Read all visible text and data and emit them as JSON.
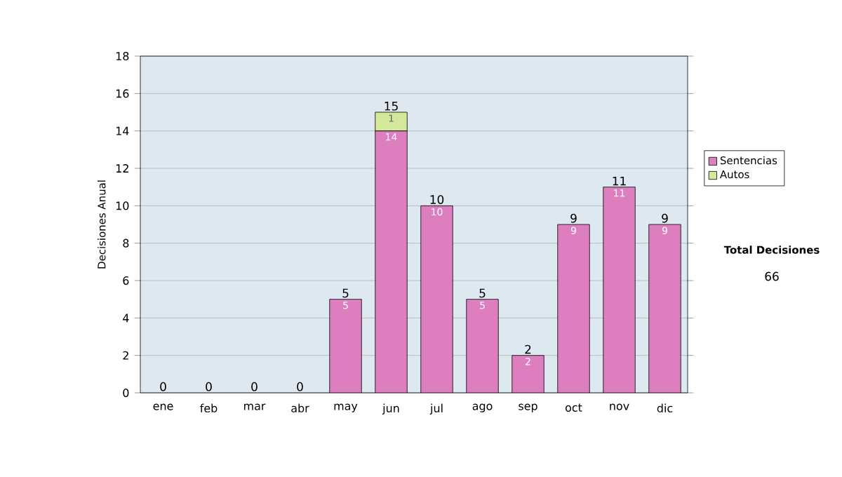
{
  "chart_data": {
    "type": "bar",
    "stacked": true,
    "ylabel": "Decisiones Anual",
    "categories": [
      "ene",
      "feb",
      "mar",
      "abr",
      "may",
      "jun",
      "jul",
      "ago",
      "sep",
      "oct",
      "nov",
      "dic"
    ],
    "series": [
      {
        "name": "Sentencias",
        "color": "#dd7fbf",
        "values": [
          0,
          0,
          0,
          0,
          5,
          14,
          10,
          5,
          2,
          9,
          11,
          9
        ],
        "value_labels": [
          null,
          null,
          null,
          null,
          "5",
          "14",
          "10",
          "5",
          "2",
          "9",
          "11",
          "9"
        ]
      },
      {
        "name": "Autos",
        "color": "#d4e89a",
        "values": [
          0,
          0,
          0,
          0,
          0,
          1,
          0,
          0,
          0,
          0,
          0,
          0
        ],
        "value_labels": [
          null,
          null,
          null,
          null,
          null,
          "1",
          null,
          null,
          null,
          null,
          null,
          null
        ]
      }
    ],
    "totals": [
      "0",
      "0",
      "0",
      "0",
      "5",
      "15",
      "10",
      "5",
      "2",
      "9",
      "11",
      "9"
    ],
    "ylim": [
      0,
      18
    ],
    "yticks": [
      0,
      2,
      4,
      6,
      8,
      10,
      12,
      14,
      16,
      18
    ],
    "grid": "y",
    "legend": "right",
    "annotations": [
      "Total Decisiones",
      "66"
    ]
  }
}
